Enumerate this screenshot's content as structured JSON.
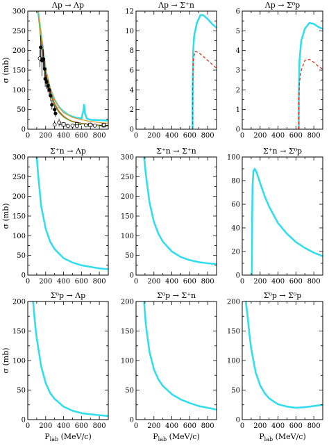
{
  "chart_data": [
    {
      "type": "line",
      "panel": "0-0",
      "title": "Λp → Λp",
      "xlabel": "",
      "ylabel": "σ (mb)",
      "xlim": [
        0,
        900
      ],
      "ylim": [
        0,
        300
      ],
      "xticks": [
        0,
        200,
        400,
        600,
        800
      ],
      "yticks": [
        0,
        50,
        100,
        150,
        200,
        250,
        300
      ],
      "ytick_labels": [
        "0",
        "50",
        "100",
        "150",
        "200",
        "250",
        "300"
      ],
      "series": [
        {
          "color": "#33ddee",
          "band": true,
          "x": [
            115,
            150,
            200,
            250,
            300,
            350,
            400,
            450,
            500,
            550,
            600,
            620,
            630,
            640,
            660,
            700,
            800,
            900
          ],
          "y": [
            300,
            238,
            150,
            103,
            75,
            56,
            45,
            37,
            32,
            29,
            27,
            45,
            62,
            40,
            27,
            24,
            23,
            22
          ]
        },
        {
          "color": "#e03020",
          "x": [
            115,
            150,
            200,
            250,
            300,
            350,
            400,
            450,
            500,
            600,
            700,
            800,
            900
          ],
          "y": [
            300,
            225,
            140,
            95,
            65,
            45,
            33,
            25,
            20,
            15,
            12,
            10,
            9
          ]
        },
        {
          "color": "#6aaa20",
          "x": [
            115,
            150,
            200,
            250,
            300,
            350,
            400,
            450,
            500,
            600,
            700,
            800,
            900
          ],
          "y": [
            300,
            215,
            130,
            88,
            60,
            42,
            31,
            24,
            19,
            14,
            11,
            9,
            8
          ]
        },
        {
          "color": "#e0a030",
          "x": [
            115,
            150,
            200,
            250,
            300,
            350,
            400,
            500,
            600,
            700,
            800,
            900
          ],
          "y": [
            300,
            240,
            155,
            105,
            75,
            55,
            42,
            30,
            24,
            20,
            17,
            15
          ]
        }
      ],
      "points_filled": [
        {
          "x": 145,
          "y": 208,
          "err": 30
        },
        {
          "x": 160,
          "y": 176,
          "err": 25
        },
        {
          "x": 175,
          "y": 178,
          "err": 25
        },
        {
          "x": 190,
          "y": 153,
          "err": 22
        },
        {
          "x": 195,
          "y": 128,
          "err": 20
        },
        {
          "x": 210,
          "y": 120,
          "err": 18
        },
        {
          "x": 225,
          "y": 110,
          "err": 16
        },
        {
          "x": 240,
          "y": 100,
          "err": 15
        },
        {
          "x": 255,
          "y": 85,
          "err": 14
        },
        {
          "x": 270,
          "y": 62,
          "err": 12
        },
        {
          "x": 300,
          "y": 50,
          "err": 10
        },
        {
          "x": 310,
          "y": 40,
          "err": 9
        }
      ],
      "points_open": [
        {
          "x": 135,
          "y": 180,
          "err": 22
        },
        {
          "x": 160,
          "y": 175,
          "err": 40
        },
        {
          "x": 300,
          "y": 12,
          "err": 10
        },
        {
          "x": 350,
          "y": 17,
          "err": 10
        },
        {
          "x": 450,
          "y": 8,
          "err": 5
        },
        {
          "x": 500,
          "y": 9,
          "err": 5
        },
        {
          "x": 550,
          "y": 8,
          "err": 5
        },
        {
          "x": 650,
          "y": 10,
          "err": 5
        },
        {
          "x": 750,
          "y": 9,
          "err": 4
        },
        {
          "x": 850,
          "y": 11,
          "err": 4
        }
      ],
      "points_square": [
        {
          "x": 400,
          "y": 12,
          "xerr": 50,
          "err": 6
        },
        {
          "x": 550,
          "y": 12,
          "xerr": 50,
          "err": 6
        },
        {
          "x": 700,
          "y": 11,
          "xerr": 50,
          "err": 6
        },
        {
          "x": 850,
          "y": 10,
          "xerr": 50,
          "err": 6
        }
      ]
    },
    {
      "type": "line",
      "panel": "0-1",
      "title": "Λp → Σ⁺n",
      "xlabel": "",
      "ylabel": "",
      "xlim": [
        0,
        900
      ],
      "ylim": [
        0,
        12
      ],
      "xticks": [
        0,
        200,
        400,
        600,
        800
      ],
      "yticks": [
        0,
        2,
        4,
        6,
        8,
        10,
        12
      ],
      "ytick_labels": [
        "0",
        "2",
        "4",
        "6",
        "8",
        "10",
        "12"
      ],
      "series": [
        {
          "color": "#33ddee",
          "band": true,
          "x": [
            632,
            633,
            640,
            650,
            680,
            720,
            750,
            800,
            850,
            900
          ],
          "y": [
            0,
            4,
            8.2,
            9.5,
            10.8,
            11.6,
            11.6,
            11.2,
            10.7,
            10.3
          ]
        },
        {
          "color": "#e03020",
          "dashed": true,
          "x": [
            632,
            633,
            640,
            660,
            700,
            750,
            800,
            850,
            900
          ],
          "y": [
            0,
            4,
            7.1,
            7.9,
            7.8,
            7.4,
            7.0,
            6.6,
            6.2
          ]
        }
      ]
    },
    {
      "type": "line",
      "panel": "0-2",
      "title": "Λp → Σ⁰p",
      "xlabel": "",
      "ylabel": "",
      "xlim": [
        0,
        900
      ],
      "ylim": [
        0,
        6
      ],
      "xticks": [
        0,
        200,
        400,
        600,
        800
      ],
      "yticks": [
        0,
        1,
        2,
        3,
        4,
        5,
        6
      ],
      "ytick_labels": [
        "0",
        "1",
        "2",
        "3",
        "4",
        "5",
        "6"
      ],
      "series": [
        {
          "color": "#33ddee",
          "band": true,
          "x": [
            632,
            633,
            640,
            660,
            700,
            750,
            800,
            850,
            900
          ],
          "y": [
            0,
            2,
            3.5,
            4.5,
            5.1,
            5.4,
            5.35,
            5.2,
            5.1
          ]
        },
        {
          "color": "#e03020",
          "dashed": true,
          "x": [
            632,
            633,
            640,
            660,
            700,
            750,
            800,
            850,
            900
          ],
          "y": [
            0,
            1.5,
            2.4,
            3.0,
            3.5,
            3.55,
            3.4,
            3.2,
            3.05
          ]
        }
      ]
    },
    {
      "type": "line",
      "panel": "1-0",
      "title": "Σ⁺n → Λp",
      "xlabel": "",
      "ylabel": "σ (mb)",
      "xlim": [
        0,
        900
      ],
      "ylim": [
        0,
        300
      ],
      "xticks": [
        0,
        200,
        400,
        600,
        800
      ],
      "yticks": [
        0,
        50,
        100,
        150,
        200,
        250,
        300
      ],
      "ytick_labels": [
        "0",
        "50",
        "100",
        "150",
        "200",
        "250",
        "300"
      ],
      "series": [
        {
          "color": "#33ddee",
          "band": true,
          "x": [
            100,
            120,
            150,
            200,
            250,
            300,
            400,
            500,
            600,
            700,
            800,
            900
          ],
          "y": [
            300,
            245,
            175,
            118,
            85,
            66,
            43,
            32,
            25,
            21,
            17,
            15
          ]
        }
      ]
    },
    {
      "type": "line",
      "panel": "1-1",
      "title": "Σ⁺n → Σ⁺n",
      "xlabel": "",
      "ylabel": "",
      "xlim": [
        0,
        900
      ],
      "ylim": [
        0,
        300
      ],
      "xticks": [
        0,
        200,
        400,
        600,
        800
      ],
      "yticks": [
        0,
        50,
        100,
        150,
        200,
        250,
        300
      ],
      "ytick_labels": [
        "0",
        "50",
        "100",
        "150",
        "200",
        "250",
        "300"
      ],
      "series": [
        {
          "color": "#33ddee",
          "band": true,
          "x": [
            90,
            110,
            150,
            200,
            250,
            300,
            400,
            500,
            600,
            700,
            800,
            900
          ],
          "y": [
            300,
            255,
            185,
            135,
            105,
            85,
            60,
            46,
            38,
            33,
            30,
            28
          ]
        }
      ]
    },
    {
      "type": "line",
      "panel": "1-2",
      "title": "Σ⁺n → Σ⁰p",
      "xlabel": "",
      "ylabel": "",
      "xlim": [
        0,
        900
      ],
      "ylim": [
        0,
        100
      ],
      "xticks": [
        0,
        200,
        400,
        600,
        800
      ],
      "yticks": [
        0,
        20,
        40,
        60,
        80,
        100
      ],
      "ytick_labels": [
        "0",
        "20",
        "40",
        "60",
        "80",
        "100"
      ],
      "series": [
        {
          "color": "#33ddee",
          "band": true,
          "x": [
            108,
            110,
            115,
            125,
            140,
            160,
            200,
            250,
            300,
            400,
            500,
            600,
            700,
            800,
            900
          ],
          "y": [
            0,
            40,
            75,
            88,
            90,
            87,
            78,
            67,
            58,
            44,
            35,
            28,
            23,
            19,
            16
          ]
        }
      ]
    },
    {
      "type": "line",
      "panel": "2-0",
      "title": "Σ⁰p → Λp",
      "xlabel": "P_lab (MeV/c)",
      "ylabel": "σ (mb)",
      "xlim": [
        0,
        900
      ],
      "ylim": [
        0,
        200
      ],
      "xticks": [
        0,
        200,
        400,
        600,
        800
      ],
      "yticks": [
        0,
        50,
        100,
        150,
        200
      ],
      "ytick_labels": [
        "0",
        "50",
        "100",
        "150",
        "200"
      ],
      "series": [
        {
          "color": "#33ddee",
          "band": true,
          "x": [
            60,
            80,
            100,
            150,
            200,
            250,
            300,
            400,
            500,
            600,
            700,
            800,
            900
          ],
          "y": [
            200,
            165,
            138,
            90,
            62,
            45,
            35,
            22,
            15,
            11,
            9,
            7.5,
            6
          ]
        }
      ]
    },
    {
      "type": "line",
      "panel": "2-1",
      "title": "Σ⁰p → Σ⁺n",
      "xlabel": "P_lab (MeV/c)",
      "ylabel": "",
      "xlim": [
        0,
        900
      ],
      "ylim": [
        0,
        200
      ],
      "xticks": [
        0,
        200,
        400,
        600,
        800
      ],
      "yticks": [
        0,
        50,
        100,
        150,
        200
      ],
      "ytick_labels": [
        "0",
        "50",
        "100",
        "150",
        "200"
      ],
      "series": [
        {
          "color": "#33ddee",
          "band": true,
          "x": [
            90,
            110,
            150,
            200,
            250,
            300,
            400,
            500,
            600,
            700,
            800,
            900
          ],
          "y": [
            200,
            160,
            115,
            85,
            68,
            57,
            43,
            34,
            28,
            23,
            20,
            17
          ]
        }
      ]
    },
    {
      "type": "line",
      "panel": "2-2",
      "title": "Σ⁰p → Σ⁰p",
      "xlabel": "P_lab (MeV/c)",
      "ylabel": "",
      "xlim": [
        0,
        900
      ],
      "ylim": [
        0,
        200
      ],
      "xticks": [
        0,
        200,
        400,
        600,
        800
      ],
      "yticks": [
        0,
        50,
        100,
        150,
        200
      ],
      "ytick_labels": [
        "0",
        "50",
        "100",
        "150",
        "200"
      ],
      "series": [
        {
          "color": "#33ddee",
          "band": true,
          "x": [
            40,
            60,
            80,
            100,
            150,
            200,
            250,
            300,
            400,
            500,
            600,
            700,
            800,
            900
          ],
          "y": [
            200,
            175,
            145,
            120,
            80,
            58,
            45,
            36,
            26,
            22,
            20,
            21,
            23,
            25
          ]
        }
      ]
    }
  ]
}
